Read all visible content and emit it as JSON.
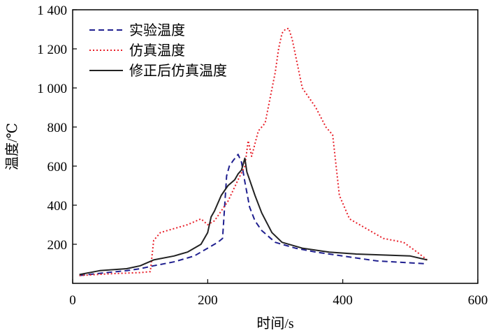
{
  "chart_data": {
    "type": "line",
    "title": "",
    "xlabel": "时间/s",
    "ylabel": "温度/℃",
    "xlim": [
      0,
      600
    ],
    "ylim": [
      0,
      1400
    ],
    "xticks": [
      0,
      200,
      400,
      600
    ],
    "xtick_labels": [
      "0",
      "200",
      "400",
      "600"
    ],
    "yticks": [
      200,
      400,
      600,
      800,
      1000,
      1200,
      1400
    ],
    "ytick_labels": [
      "200",
      "400",
      "600",
      "800",
      "1 000",
      "1 200",
      "1 400"
    ],
    "legend": {
      "position": "top-left"
    },
    "series": [
      {
        "name": "实验温度",
        "color": "#1f1f8f",
        "dash": "dashed",
        "x": [
          10,
          50,
          80,
          100,
          120,
          150,
          180,
          200,
          215,
          222,
          225,
          228,
          232,
          238,
          245,
          250,
          255,
          262,
          270,
          280,
          300,
          330,
          360,
          400,
          450,
          500,
          525
        ],
        "y": [
          40,
          55,
          65,
          75,
          90,
          110,
          140,
          180,
          210,
          230,
          390,
          550,
          600,
          630,
          660,
          620,
          520,
          390,
          320,
          270,
          210,
          180,
          160,
          140,
          115,
          105,
          100
        ]
      },
      {
        "name": "仿真温度",
        "color": "#e8202a",
        "dash": "dotted",
        "x": [
          10,
          60,
          100,
          115,
          120,
          130,
          150,
          170,
          190,
          200,
          210,
          230,
          245,
          255,
          260,
          265,
          275,
          285,
          300,
          305,
          310,
          315,
          320,
          325,
          340,
          360,
          375,
          385,
          395,
          410,
          440,
          460,
          490,
          510,
          525
        ],
        "y": [
          40,
          50,
          55,
          60,
          220,
          260,
          280,
          300,
          330,
          300,
          320,
          420,
          530,
          600,
          730,
          650,
          780,
          820,
          1080,
          1200,
          1280,
          1300,
          1305,
          1250,
          1000,
          900,
          800,
          760,
          450,
          330,
          270,
          230,
          210,
          160,
          120
        ]
      },
      {
        "name": "修正后仿真温度",
        "color": "#222222",
        "dash": "solid",
        "x": [
          10,
          40,
          80,
          100,
          120,
          150,
          170,
          190,
          200,
          205,
          210,
          220,
          230,
          240,
          245,
          250,
          255,
          258,
          262,
          270,
          280,
          295,
          310,
          340,
          380,
          420,
          460,
          500,
          525
        ],
        "y": [
          45,
          65,
          75,
          90,
          120,
          140,
          160,
          200,
          260,
          340,
          370,
          450,
          500,
          530,
          560,
          580,
          640,
          570,
          530,
          450,
          360,
          260,
          210,
          180,
          160,
          150,
          145,
          140,
          120
        ]
      }
    ]
  }
}
